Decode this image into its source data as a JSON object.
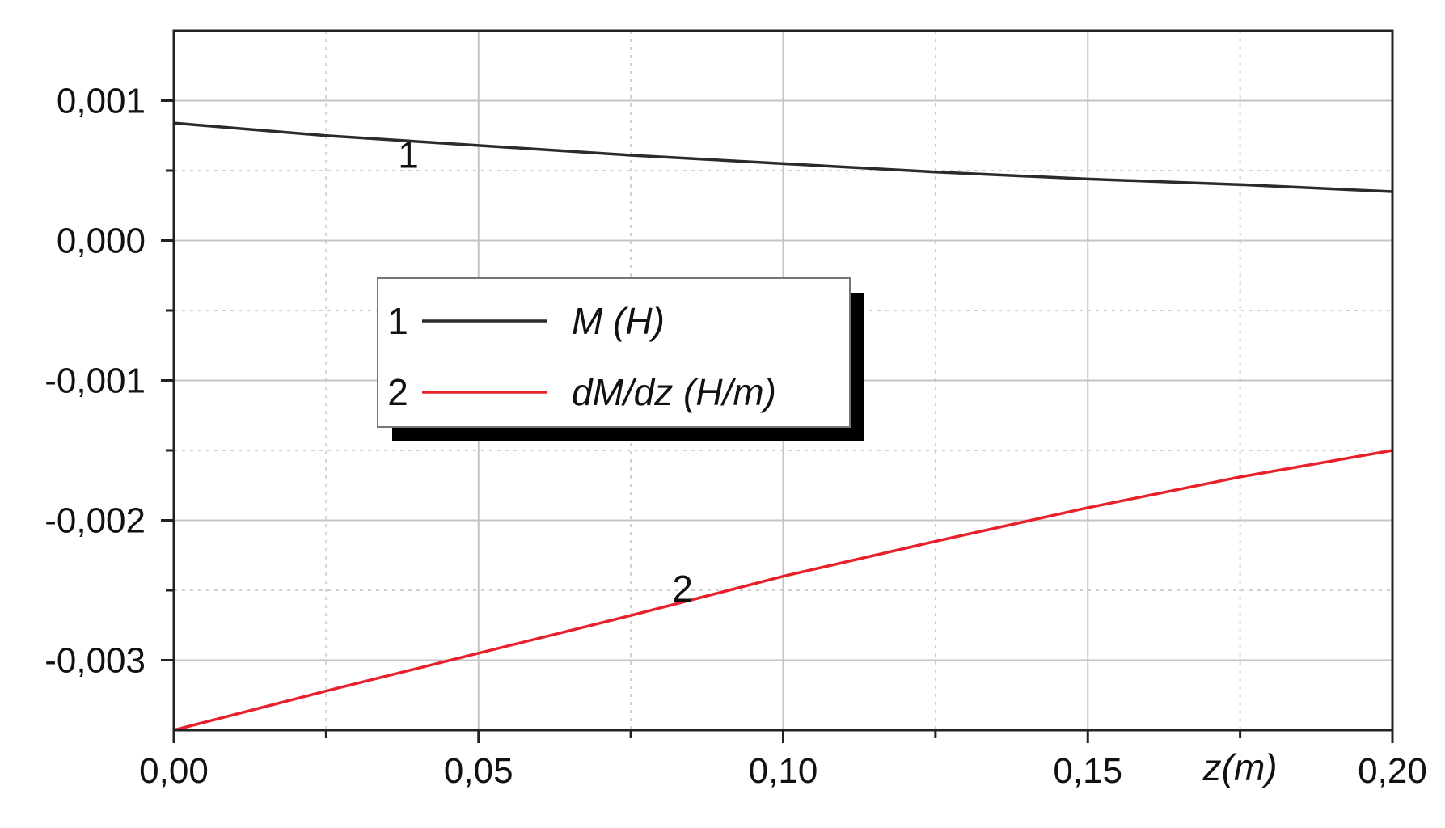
{
  "chart_data": {
    "type": "line",
    "title": "",
    "xlabel": "z(m)",
    "ylabel": "",
    "xlim": [
      0,
      0.2
    ],
    "ylim": [
      -0.0035,
      0.0015
    ],
    "x_ticks": [
      {
        "value": 0.0,
        "label": "0,00"
      },
      {
        "value": 0.05,
        "label": "0,05"
      },
      {
        "value": 0.1,
        "label": "0,10"
      },
      {
        "value": 0.15,
        "label": "0,15"
      },
      {
        "value": 0.2,
        "label": "0,20"
      }
    ],
    "y_ticks": [
      {
        "value": 0.001,
        "label": "0,001"
      },
      {
        "value": 0.0,
        "label": "0,000"
      },
      {
        "value": -0.001,
        "label": "-0,001"
      },
      {
        "value": -0.002,
        "label": "-0,002"
      },
      {
        "value": -0.003,
        "label": "-0,003"
      }
    ],
    "grid": true,
    "legend_position": "center-left",
    "series": [
      {
        "id": "1",
        "name": "M (H)",
        "color": "#2b2b2b",
        "curve_label": "1",
        "x": [
          0.0,
          0.025,
          0.05,
          0.075,
          0.1,
          0.125,
          0.15,
          0.175,
          0.2
        ],
        "y": [
          0.00084,
          0.00075,
          0.00068,
          0.00061,
          0.00055,
          0.00049,
          0.00044,
          0.0004,
          0.00035
        ]
      },
      {
        "id": "2",
        "name": "dM/dz (H/m)",
        "color": "#e8202a",
        "curve_label": "2",
        "x": [
          0.0,
          0.025,
          0.05,
          0.075,
          0.1,
          0.125,
          0.15,
          0.175,
          0.2
        ],
        "y": [
          -0.0035,
          -0.00322,
          -0.00295,
          -0.00268,
          -0.0024,
          -0.00215,
          -0.00191,
          -0.00169,
          -0.0015
        ]
      }
    ]
  }
}
